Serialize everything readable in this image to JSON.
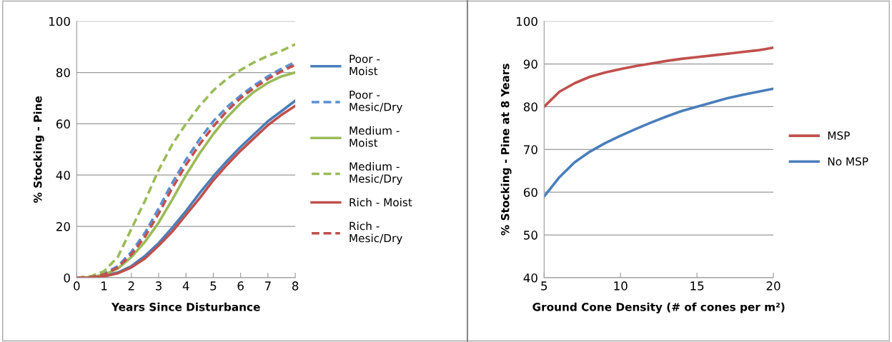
{
  "chart_data": [
    {
      "type": "line",
      "xlabel": "Years Since Disturbance",
      "ylabel": "% Stocking - Pine",
      "x": [
        0,
        0.5,
        1,
        1.5,
        2,
        2.5,
        3,
        3.5,
        4,
        4.5,
        5,
        5.5,
        6,
        6.5,
        7,
        7.5,
        8
      ],
      "xlim": [
        0,
        8
      ],
      "xticks": [
        0,
        1,
        2,
        3,
        4,
        5,
        6,
        7,
        8
      ],
      "ylim": [
        0,
        100
      ],
      "yticks": [
        0,
        20,
        40,
        60,
        80,
        100
      ],
      "grid": "y",
      "legend": "right",
      "marker": "none",
      "series": [
        {
          "name": "Poor -\nMoist",
          "color": "#4a7ebb",
          "line_style": "solid",
          "values": [
            0,
            0,
            0.8,
            2,
            4.5,
            8.5,
            13.5,
            19.5,
            26,
            33,
            39.5,
            45.5,
            51,
            56,
            61,
            65,
            69
          ]
        },
        {
          "name": "Poor -\nMesic/Dry",
          "color": "#5b8fd0",
          "line_style": "dashed",
          "values": [
            0,
            0.3,
            1.5,
            4.5,
            10,
            17.5,
            27,
            37,
            46,
            54,
            61,
            66.5,
            71,
            75,
            78.5,
            81.5,
            84
          ]
        },
        {
          "name": "Medium -\nMoist",
          "color": "#9bbb59",
          "line_style": "solid",
          "values": [
            0,
            0.2,
            1.2,
            3.5,
            8,
            14,
            21.5,
            30.5,
            40,
            48.5,
            56,
            62.5,
            68,
            72.5,
            76,
            78.5,
            80
          ]
        },
        {
          "name": "Medium -\nMesic/Dry",
          "color": "#9bbb59",
          "line_style": "dashed",
          "values": [
            0,
            0.5,
            2.5,
            8,
            19,
            30,
            42,
            52,
            60,
            67,
            73,
            77.5,
            81,
            84,
            86.5,
            88.5,
            91
          ]
        },
        {
          "name": "Rich - Moist",
          "color": "#c0504d",
          "line_style": "solid",
          "values": [
            0,
            0,
            0.5,
            1.7,
            4,
            7.5,
            12.5,
            18,
            24.5,
            31,
            38,
            44,
            49.5,
            54.5,
            59.5,
            63.5,
            67
          ]
        },
        {
          "name": "Rich -\nMesic/Dry",
          "color": "#c0504d",
          "line_style": "dashed",
          "values": [
            0,
            0.2,
            1.2,
            4,
            9,
            16,
            25,
            35,
            44,
            52,
            59,
            65,
            70,
            74,
            77.5,
            80.5,
            83
          ]
        }
      ]
    },
    {
      "type": "line",
      "xlabel": "Ground Cone Density (# of cones per m²)",
      "ylabel": "% Stocking - Pine at 8 Years",
      "x": [
        5,
        6,
        7,
        8,
        9,
        10,
        11,
        12,
        13,
        14,
        15,
        16,
        17,
        18,
        19,
        20
      ],
      "xlim": [
        5,
        20
      ],
      "xticks": [
        5,
        10,
        15,
        20
      ],
      "ylim": [
        40,
        100
      ],
      "yticks": [
        40,
        50,
        60,
        70,
        80,
        90,
        100
      ],
      "grid": "y",
      "legend": "right",
      "marker": "none",
      "line_style": "solid",
      "series": [
        {
          "name": "MSP",
          "color": "#c0504d",
          "values": [
            80,
            83.5,
            85.5,
            87,
            88,
            88.8,
            89.5,
            90.1,
            90.7,
            91.2,
            91.6,
            92,
            92.4,
            92.8,
            93.2,
            93.8
          ]
        },
        {
          "name": "No MSP",
          "color": "#4a7ebb",
          "values": [
            59,
            63.5,
            67,
            69.5,
            71.5,
            73.2,
            74.8,
            76.3,
            77.7,
            79,
            80,
            81,
            82,
            82.8,
            83.5,
            84.2
          ]
        }
      ]
    }
  ]
}
